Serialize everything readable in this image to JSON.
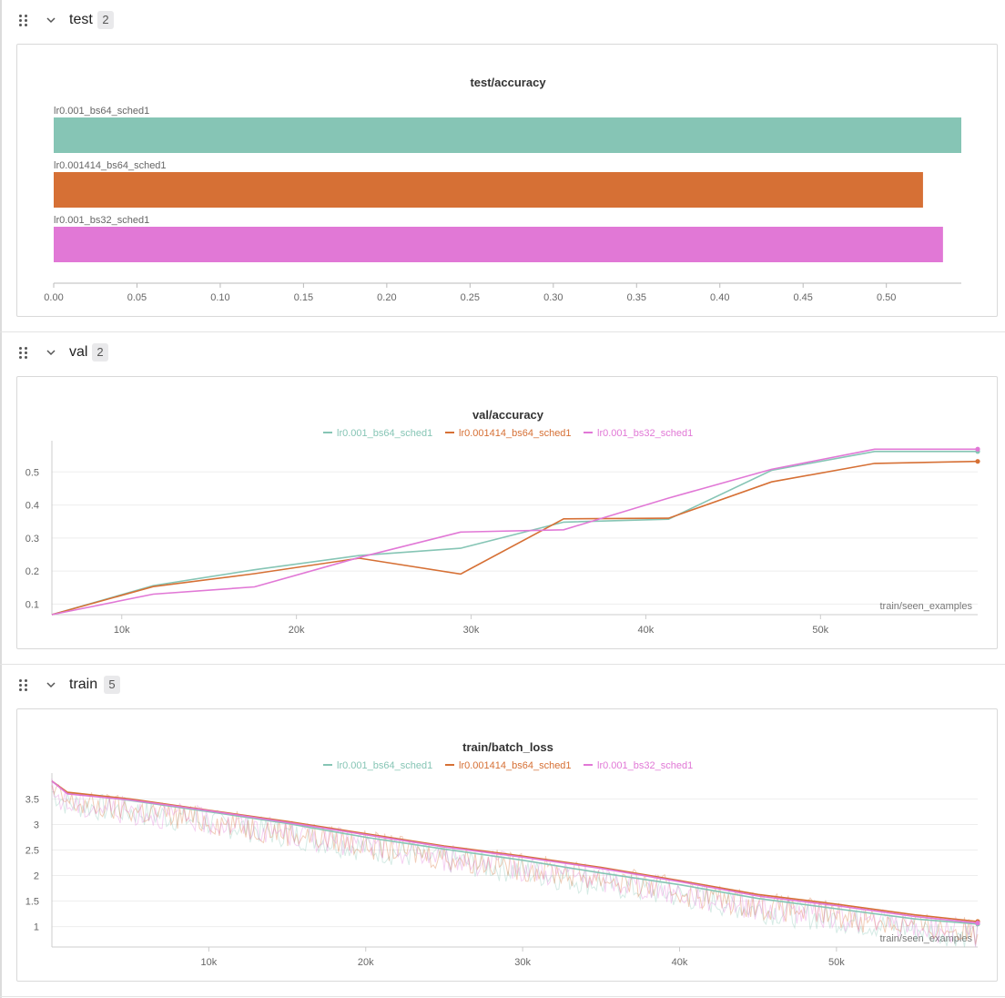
{
  "sections": [
    {
      "name": "test",
      "count": "2"
    },
    {
      "name": "val",
      "count": "2"
    },
    {
      "name": "train",
      "count": "5"
    }
  ],
  "colors": {
    "series": [
      "#86c5b5",
      "#d67035",
      "#e178d6"
    ]
  },
  "chart_data": [
    {
      "type": "bar",
      "orientation": "horizontal",
      "title": "test/accuracy",
      "categories": [
        "lr0.001_bs64_sched1",
        "lr0.001414_bs64_sched1",
        "lr0.001_bs32_sched1"
      ],
      "values": [
        0.545,
        0.522,
        0.534
      ],
      "xlim": [
        0,
        0.545
      ],
      "xticks": [
        "0.00",
        "0.05",
        "0.10",
        "0.15",
        "0.20",
        "0.25",
        "0.30",
        "0.35",
        "0.40",
        "0.45",
        "0.50"
      ],
      "xtick_values": [
        0,
        0.05,
        0.1,
        0.15,
        0.2,
        0.25,
        0.3,
        0.35,
        0.4,
        0.45,
        0.5
      ]
    },
    {
      "type": "line",
      "title": "val/accuracy",
      "xlabel": "train/seen_examples",
      "legend_position": "top-center",
      "xlim": [
        6000,
        59000
      ],
      "ylim": [
        0.068,
        0.578
      ],
      "xticks": [
        "10k",
        "20k",
        "30k",
        "40k",
        "50k"
      ],
      "xtick_values": [
        10000,
        20000,
        30000,
        40000,
        50000
      ],
      "yticks": [
        "0.1",
        "0.2",
        "0.3",
        "0.4",
        "0.5"
      ],
      "ytick_values": [
        0.1,
        0.2,
        0.3,
        0.4,
        0.5
      ],
      "series": [
        {
          "name": "lr0.001_bs64_sched1",
          "x": [
            6000,
            11800,
            17600,
            23600,
            29400,
            35300,
            41300,
            47200,
            53100,
            59000
          ],
          "y": [
            0.068,
            0.156,
            0.204,
            0.247,
            0.269,
            0.348,
            0.357,
            0.505,
            0.562,
            0.562
          ]
        },
        {
          "name": "lr0.001414_bs64_sched1",
          "x": [
            6000,
            11800,
            17600,
            23600,
            29400,
            35300,
            41300,
            47200,
            53100,
            59000
          ],
          "y": [
            0.068,
            0.153,
            0.192,
            0.239,
            0.191,
            0.358,
            0.36,
            0.47,
            0.526,
            0.532
          ]
        },
        {
          "name": "lr0.001_bs32_sched1",
          "x": [
            6000,
            11800,
            17600,
            23600,
            29400,
            35300,
            41300,
            47200,
            53100,
            59000
          ],
          "y": [
            0.068,
            0.13,
            0.152,
            0.241,
            0.318,
            0.325,
            0.421,
            0.508,
            0.569,
            0.569
          ]
        }
      ]
    },
    {
      "type": "line",
      "title": "train/batch_loss",
      "xlabel": "train/seen_examples",
      "legend_position": "top-center",
      "xlim": [
        0,
        59000
      ],
      "ylim": [
        0.6,
        3.9
      ],
      "xticks": [
        "10k",
        "20k",
        "30k",
        "40k",
        "50k"
      ],
      "xtick_values": [
        10000,
        20000,
        30000,
        40000,
        50000
      ],
      "yticks": [
        "1",
        "1.5",
        "2",
        "2.5",
        "3",
        "3.5"
      ],
      "ytick_values": [
        1,
        1.5,
        2,
        2.5,
        3,
        3.5
      ],
      "series": [
        {
          "name": "lr0.001_bs64_sched1",
          "x": [
            0,
            1000,
            5000,
            10000,
            15000,
            20000,
            25000,
            30000,
            35000,
            40000,
            45000,
            50000,
            55000,
            59000
          ],
          "y": [
            3.85,
            3.62,
            3.47,
            3.25,
            3.02,
            2.75,
            2.52,
            2.3,
            2.05,
            1.82,
            1.55,
            1.35,
            1.15,
            1.05
          ]
        },
        {
          "name": "lr0.001414_bs64_sched1",
          "x": [
            0,
            1000,
            5000,
            10000,
            15000,
            20000,
            25000,
            30000,
            35000,
            40000,
            45000,
            50000,
            55000,
            59000
          ],
          "y": [
            3.85,
            3.63,
            3.5,
            3.28,
            3.06,
            2.82,
            2.58,
            2.38,
            2.16,
            1.9,
            1.63,
            1.44,
            1.23,
            1.1
          ]
        },
        {
          "name": "lr0.001_bs32_sched1",
          "x": [
            0,
            1000,
            5000,
            10000,
            15000,
            20000,
            25000,
            30000,
            35000,
            40000,
            45000,
            50000,
            55000,
            59000
          ],
          "y": [
            3.85,
            3.6,
            3.48,
            3.27,
            3.04,
            2.8,
            2.56,
            2.36,
            2.14,
            1.88,
            1.6,
            1.41,
            1.2,
            1.07
          ]
        }
      ]
    }
  ]
}
